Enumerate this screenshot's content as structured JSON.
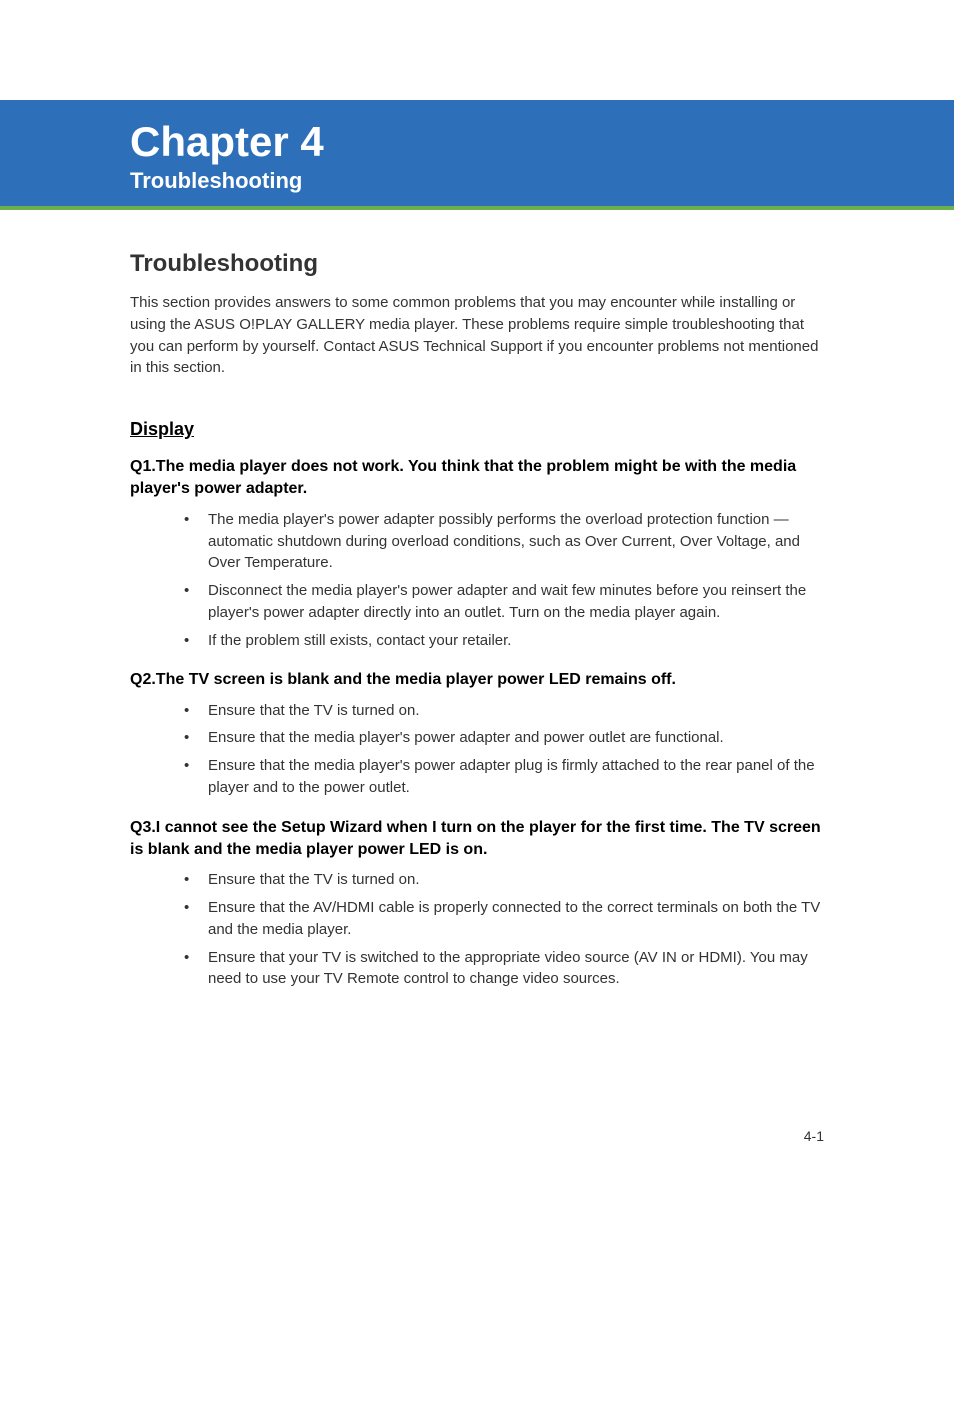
{
  "header": {
    "chapter_number": "Chapter 4",
    "chapter_title": "Troubleshooting"
  },
  "main_heading": "Troubleshooting",
  "intro": "This section provides answers to some common problems that you may encounter while installing or using the ASUS O!PLAY GALLERY media player. These problems require simple troubleshooting that you can perform by yourself. Contact ASUS Technical Support if you encounter problems not mentioned in this section.",
  "section_heading": "Display",
  "qa": [
    {
      "question_prefix": "Q1. ",
      "question_text": "The media player does not work. You think that the problem might be with the media player's power adapter.",
      "answers": [
        "The media player's power adapter possibly performs the overload protection function — automatic shutdown during overload conditions, such as Over Current, Over Voltage, and Over Temperature.",
        "Disconnect the media player's power adapter and wait few minutes before you reinsert the player's power adapter directly into an outlet. Turn on the media player again.",
        "If the problem still exists, contact your retailer."
      ]
    },
    {
      "question_prefix": "Q2. ",
      "question_text": "The TV screen is blank and the media player power LED remains off.",
      "answers": [
        "Ensure that the TV is turned on.",
        "Ensure that the media player's power adapter and power outlet are functional.",
        "Ensure that the media player's power adapter plug is firmly attached to the rear panel of the player and to the power outlet."
      ]
    },
    {
      "question_prefix": "Q3. ",
      "question_text": "I cannot see the Setup Wizard when I turn on the player for the first time. The TV screen is blank and the media player power LED is on.",
      "answers": [
        "Ensure that the TV is turned on.",
        "Ensure that the AV/HDMI cable is properly connected to the correct terminals on both the TV and the media player.",
        "Ensure that your TV is switched to the appropriate video source (AV IN or HDMI). You may need to use your TV Remote control to change video sources."
      ]
    }
  ],
  "page_number": "4-1",
  "colors": {
    "header_bg": "#2d6fb9",
    "header_border": "#6ab04c",
    "header_text": "#ffffff",
    "body_text": "#333333",
    "page_bg": "#ffffff"
  },
  "typography": {
    "chapter_number_size": 42,
    "chapter_title_size": 22,
    "main_heading_size": 24,
    "section_heading_size": 18,
    "question_size": 16,
    "body_size": 15,
    "page_number_size": 14
  }
}
